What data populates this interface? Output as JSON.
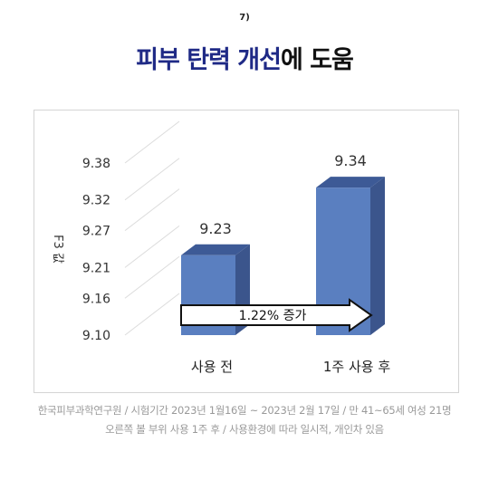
{
  "marker": "7)",
  "title": {
    "accent": "피부 탄력 개선",
    "rest": "에 도움"
  },
  "chart_data": {
    "type": "bar",
    "title": "피부 탄력 개선에 도움",
    "ylabel": "F3 값",
    "xlabel": "",
    "categories": [
      "사용 전",
      "1주 사용 후"
    ],
    "values": [
      9.23,
      9.34
    ],
    "data_labels": [
      "9.23",
      "9.34"
    ],
    "y_ticks": [
      "9.38",
      "9.32",
      "9.27",
      "9.21",
      "9.16",
      "9.10"
    ],
    "ylim": [
      9.1,
      9.38
    ],
    "grid": false,
    "style": "3d-bar",
    "bar_color": "#5a7fc0",
    "bar_top_color": "#3d5a96",
    "bar_side_color": "#3b558c",
    "annotation": "1.22% 증가"
  },
  "footnote": {
    "line1": "한국피부과학연구원 / 시험기간 2023년 1월16일 ~ 2023년 2월 17일 / 만 41~65세 여성 21명",
    "line2": "오른쪽 볼 부위 사용 1주 후  / 사용환경에 따라 일시적, 개인차 있음"
  }
}
